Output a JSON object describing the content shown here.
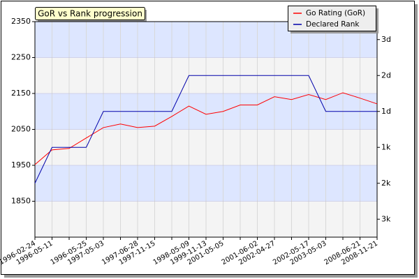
{
  "chart_data": {
    "type": "line",
    "title": "GoR vs Rank progression",
    "categories": [
      "1996-02-24",
      "1996-05-11",
      null,
      "1996-05-25",
      "1997-05-03",
      null,
      "1997-06-28",
      "1997-11-15",
      null,
      "1998-05-09",
      "1999-11-13",
      "2001-05-05",
      null,
      "2001-06-02",
      "2002-04-27",
      null,
      "2002-05-17",
      "2003-05-03",
      null,
      "2008-06-21",
      "2008-11-21"
    ],
    "series": [
      {
        "name": "Go Rating (GoR)",
        "color": "#ff0000",
        "values": [
          1952,
          1993,
          1997,
          2026,
          2055,
          2065,
          2055,
          2059,
          2086,
          2115,
          2092,
          2100,
          2118,
          2118,
          2141,
          2133,
          2147,
          2133,
          2152,
          2137,
          2121
        ]
      },
      {
        "name": "Declared Rank",
        "color": "#0000aa",
        "axis": "y2",
        "values": [
          -1,
          0,
          0,
          0,
          1,
          1,
          1,
          1,
          1,
          2,
          2,
          2,
          2,
          2,
          2,
          2,
          2,
          1,
          1,
          1,
          1
        ]
      }
    ],
    "ylim": [
      1750,
      2350
    ],
    "yticks": [
      1850,
      1950,
      2050,
      2150,
      2250,
      2350
    ],
    "y2lim": [
      -2.5,
      3.5
    ],
    "y2ticks": [
      {
        "value": -2,
        "label": "3k"
      },
      {
        "value": -1,
        "label": "2k"
      },
      {
        "value": 0,
        "label": "1k"
      },
      {
        "value": 1,
        "label": "1d"
      },
      {
        "value": 2,
        "label": "2d"
      },
      {
        "value": 3,
        "label": "3d"
      }
    ],
    "grid": true,
    "legend": "top-right"
  }
}
